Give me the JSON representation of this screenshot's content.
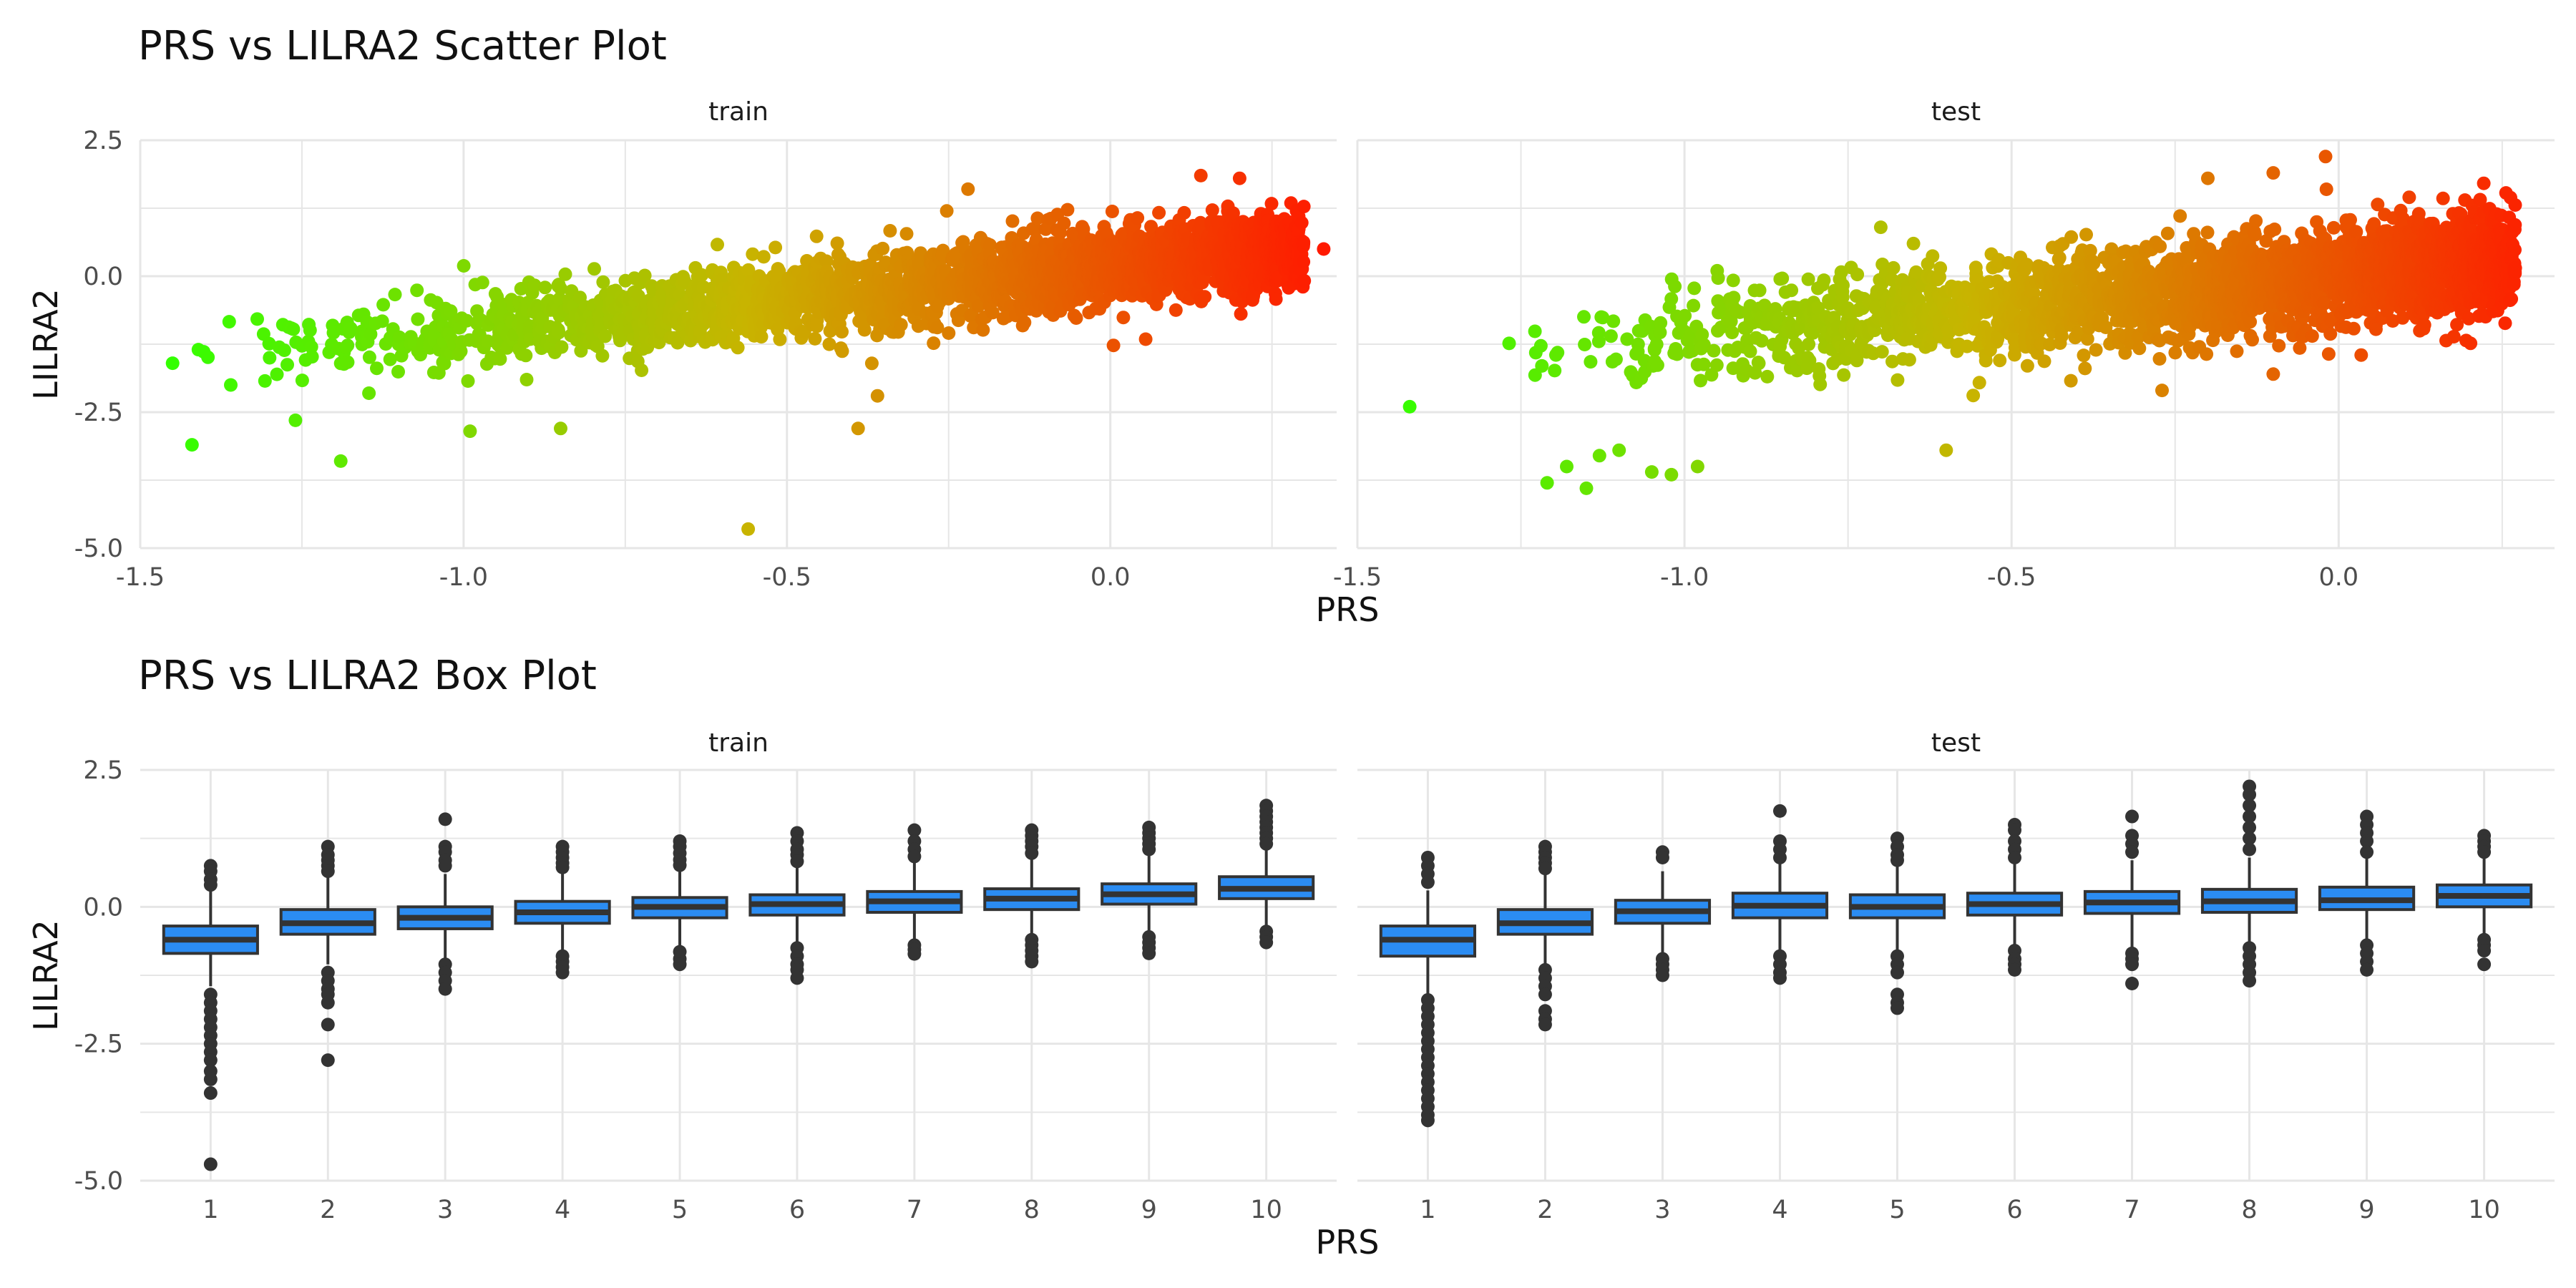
{
  "chart_data": [
    {
      "type": "scatter",
      "title": "PRS vs LILRA2 Scatter Plot",
      "xlabel": "PRS",
      "ylabel": "LILRA2",
      "ylim": [
        -5.0,
        2.5
      ],
      "y_ticks": [
        "2.5",
        "0.0",
        "-2.5",
        "-5.0"
      ],
      "grid": true,
      "color_scale": {
        "low": "#33ff00",
        "mid": "#c8b400",
        "high": "#ff1a00"
      },
      "panels": [
        {
          "name": "train",
          "xlim": [
            -1.5,
            0.35
          ],
          "x_ticks": [
            "-1.5",
            "-1.0",
            "-0.5",
            "0.0"
          ],
          "trend": {
            "x0": -1.45,
            "y0": -1.55,
            "x1": 0.3,
            "y1": 0.55,
            "sd": 0.35
          },
          "outliers": [
            [
              -1.42,
              -3.1
            ],
            [
              -1.19,
              -3.4
            ],
            [
              -0.56,
              -4.65
            ],
            [
              -0.39,
              -2.8
            ],
            [
              -0.99,
              -2.85
            ],
            [
              -0.85,
              -2.8
            ],
            [
              -0.36,
              -2.2
            ],
            [
              -0.22,
              1.6
            ],
            [
              0.14,
              1.85
            ],
            [
              0.2,
              1.8
            ],
            [
              0.33,
              0.5
            ],
            [
              -1.45,
              -1.6
            ],
            [
              -1.41,
              -1.35
            ],
            [
              -1.36,
              -2.0
            ],
            [
              -1.26,
              -2.65
            ],
            [
              -1.18,
              -0.85
            ],
            [
              -1.24,
              -1.2
            ],
            [
              -1.3,
              -1.5
            ]
          ]
        },
        {
          "name": "test",
          "xlim": [
            -1.5,
            0.33
          ],
          "x_ticks": [
            "-1.5",
            "-1.0",
            "-0.5",
            "0.0"
          ],
          "trend": {
            "x0": -1.3,
            "y0": -1.5,
            "x1": 0.27,
            "y1": 0.3,
            "sd": 0.45
          },
          "outliers": [
            [
              -1.42,
              -2.4
            ],
            [
              -1.15,
              -3.9
            ],
            [
              -1.18,
              -3.5
            ],
            [
              -1.21,
              -3.8
            ],
            [
              -1.13,
              -3.3
            ],
            [
              -1.05,
              -3.6
            ],
            [
              -1.02,
              -3.65
            ],
            [
              -0.98,
              -3.5
            ],
            [
              -1.1,
              -3.2
            ],
            [
              -0.6,
              -3.2
            ],
            [
              -0.27,
              -2.1
            ],
            [
              -0.2,
              1.8
            ],
            [
              -0.02,
              2.2
            ],
            [
              -0.1,
              1.9
            ],
            [
              0.27,
              0.15
            ],
            [
              -0.7,
              0.9
            ],
            [
              -0.65,
              0.6
            ],
            [
              -0.95,
              0.1
            ],
            [
              -0.1,
              -1.8
            ]
          ]
        }
      ]
    },
    {
      "type": "box",
      "title": "PRS vs LILRA2 Box Plot",
      "xlabel": "PRS",
      "ylabel": "LILRA2",
      "ylim": [
        -5.0,
        2.5
      ],
      "y_ticks": [
        "2.5",
        "0.0",
        "-2.5",
        "-5.0"
      ],
      "categories": [
        "1",
        "2",
        "3",
        "4",
        "5",
        "6",
        "7",
        "8",
        "9",
        "10"
      ],
      "box_color": "#2b8cf2",
      "panels": [
        {
          "name": "train",
          "boxes": [
            {
              "q1": -0.85,
              "median": -0.6,
              "q3": -0.35,
              "whisker_low": -1.45,
              "whisker_high": 0.3,
              "outliers": [
                0.75,
                0.65,
                0.5,
                0.4,
                -1.6,
                -1.75,
                -1.9,
                -2.05,
                -2.2,
                -2.35,
                -2.5,
                -2.65,
                -2.8,
                -3.0,
                -3.15,
                -3.4,
                -4.7
              ]
            },
            {
              "q1": -0.5,
              "median": -0.3,
              "q3": -0.05,
              "whisker_low": -1.05,
              "whisker_high": 0.6,
              "outliers": [
                1.1,
                0.95,
                0.85,
                0.75,
                0.65,
                -1.2,
                -1.35,
                -1.5,
                -1.6,
                -1.75,
                -2.15,
                -2.8
              ]
            },
            {
              "q1": -0.4,
              "median": -0.2,
              "q3": 0.0,
              "whisker_low": -0.95,
              "whisker_high": 0.6,
              "outliers": [
                1.6,
                1.1,
                1.0,
                0.85,
                0.75,
                -1.05,
                -1.2,
                -1.35,
                -1.5
              ]
            },
            {
              "q1": -0.3,
              "median": -0.1,
              "q3": 0.1,
              "whisker_low": -0.85,
              "whisker_high": 0.65,
              "outliers": [
                1.1,
                1.0,
                0.9,
                0.8,
                0.72,
                -0.9,
                -1.0,
                -1.1,
                -1.2
              ]
            },
            {
              "q1": -0.2,
              "median": 0.0,
              "q3": 0.17,
              "whisker_low": -0.75,
              "whisker_high": 0.7,
              "outliers": [
                1.2,
                1.1,
                0.98,
                0.86,
                0.76,
                -0.82,
                -0.95,
                -1.05
              ]
            },
            {
              "q1": -0.15,
              "median": 0.05,
              "q3": 0.22,
              "whisker_low": -0.7,
              "whisker_high": 0.75,
              "outliers": [
                1.35,
                1.2,
                1.05,
                0.95,
                0.83,
                -0.75,
                -0.9,
                -1.05,
                -1.15,
                -1.3
              ]
            },
            {
              "q1": -0.1,
              "median": 0.1,
              "q3": 0.28,
              "whisker_low": -0.65,
              "whisker_high": 0.85,
              "outliers": [
                1.4,
                1.2,
                1.05,
                0.92,
                -0.7,
                -0.78,
                -0.86
              ]
            },
            {
              "q1": -0.05,
              "median": 0.15,
              "q3": 0.33,
              "whisker_low": -0.55,
              "whisker_high": 0.9,
              "outliers": [
                1.4,
                1.3,
                1.2,
                1.1,
                0.98,
                -0.6,
                -0.7,
                -0.8,
                -0.9,
                -1.0
              ]
            },
            {
              "q1": 0.05,
              "median": 0.23,
              "q3": 0.42,
              "whisker_low": -0.5,
              "whisker_high": 0.95,
              "outliers": [
                1.45,
                1.35,
                1.25,
                1.15,
                1.05,
                -0.55,
                -0.65,
                -0.75,
                -0.85
              ]
            },
            {
              "q1": 0.15,
              "median": 0.33,
              "q3": 0.55,
              "whisker_low": -0.35,
              "whisker_high": 1.1,
              "outliers": [
                1.85,
                1.75,
                1.65,
                1.55,
                1.45,
                1.35,
                1.25,
                1.15,
                -0.45,
                -0.55,
                -0.65
              ]
            }
          ]
        },
        {
          "name": "test",
          "boxes": [
            {
              "q1": -0.9,
              "median": -0.6,
              "q3": -0.35,
              "whisker_low": -1.6,
              "whisker_high": 0.3,
              "outliers": [
                0.9,
                0.75,
                0.6,
                0.45,
                -1.7,
                -1.85,
                -2.0,
                -2.15,
                -2.3,
                -2.45,
                -2.6,
                -2.75,
                -2.9,
                -3.05,
                -3.2,
                -3.35,
                -3.5,
                -3.65,
                -3.8,
                -3.9
              ]
            },
            {
              "q1": -0.5,
              "median": -0.3,
              "q3": -0.05,
              "whisker_low": -1.05,
              "whisker_high": 0.6,
              "outliers": [
                1.1,
                1.0,
                0.9,
                0.8,
                0.7,
                -1.15,
                -1.3,
                -1.45,
                -1.6,
                -1.9,
                -2.05,
                -2.15
              ]
            },
            {
              "q1": -0.3,
              "median": -0.08,
              "q3": 0.12,
              "whisker_low": -0.85,
              "whisker_high": 0.65,
              "outliers": [
                1.0,
                0.9,
                -0.95,
                -1.05,
                -1.15,
                -1.25
              ]
            },
            {
              "q1": -0.2,
              "median": 0.02,
              "q3": 0.25,
              "whisker_low": -0.8,
              "whisker_high": 0.8,
              "outliers": [
                1.75,
                1.2,
                1.05,
                0.9,
                -0.9,
                -1.05,
                -1.2,
                -1.3
              ]
            },
            {
              "q1": -0.2,
              "median": 0.0,
              "q3": 0.22,
              "whisker_low": -0.8,
              "whisker_high": 0.8,
              "outliers": [
                1.25,
                1.1,
                0.95,
                0.85,
                -0.9,
                -1.05,
                -1.2,
                -1.6,
                -1.75,
                -1.85
              ]
            },
            {
              "q1": -0.15,
              "median": 0.05,
              "q3": 0.25,
              "whisker_low": -0.75,
              "whisker_high": 0.8,
              "outliers": [
                1.5,
                1.4,
                1.2,
                1.05,
                0.9,
                -0.8,
                -0.95,
                -1.05,
                -1.15
              ]
            },
            {
              "q1": -0.12,
              "median": 0.08,
              "q3": 0.28,
              "whisker_low": -0.75,
              "whisker_high": 0.85,
              "outliers": [
                1.65,
                1.3,
                1.15,
                1.0,
                -0.85,
                -0.95,
                -1.05,
                -1.4
              ]
            },
            {
              "q1": -0.1,
              "median": 0.1,
              "q3": 0.32,
              "whisker_low": -0.7,
              "whisker_high": 0.9,
              "outliers": [
                2.2,
                2.05,
                1.85,
                1.65,
                1.45,
                1.25,
                1.05,
                -0.75,
                -0.9,
                -1.05,
                -1.2,
                -1.35
              ]
            },
            {
              "q1": -0.05,
              "median": 0.12,
              "q3": 0.36,
              "whisker_low": -0.65,
              "whisker_high": 0.9,
              "outliers": [
                1.65,
                1.5,
                1.35,
                1.2,
                1.0,
                -0.7,
                -0.85,
                -1.0,
                -1.15
              ]
            },
            {
              "q1": 0.0,
              "median": 0.2,
              "q3": 0.4,
              "whisker_low": -0.5,
              "whisker_high": 0.9,
              "outliers": [
                1.3,
                1.2,
                1.1,
                1.0,
                -0.6,
                -0.7,
                -0.8,
                -1.05
              ]
            }
          ]
        }
      ]
    }
  ]
}
